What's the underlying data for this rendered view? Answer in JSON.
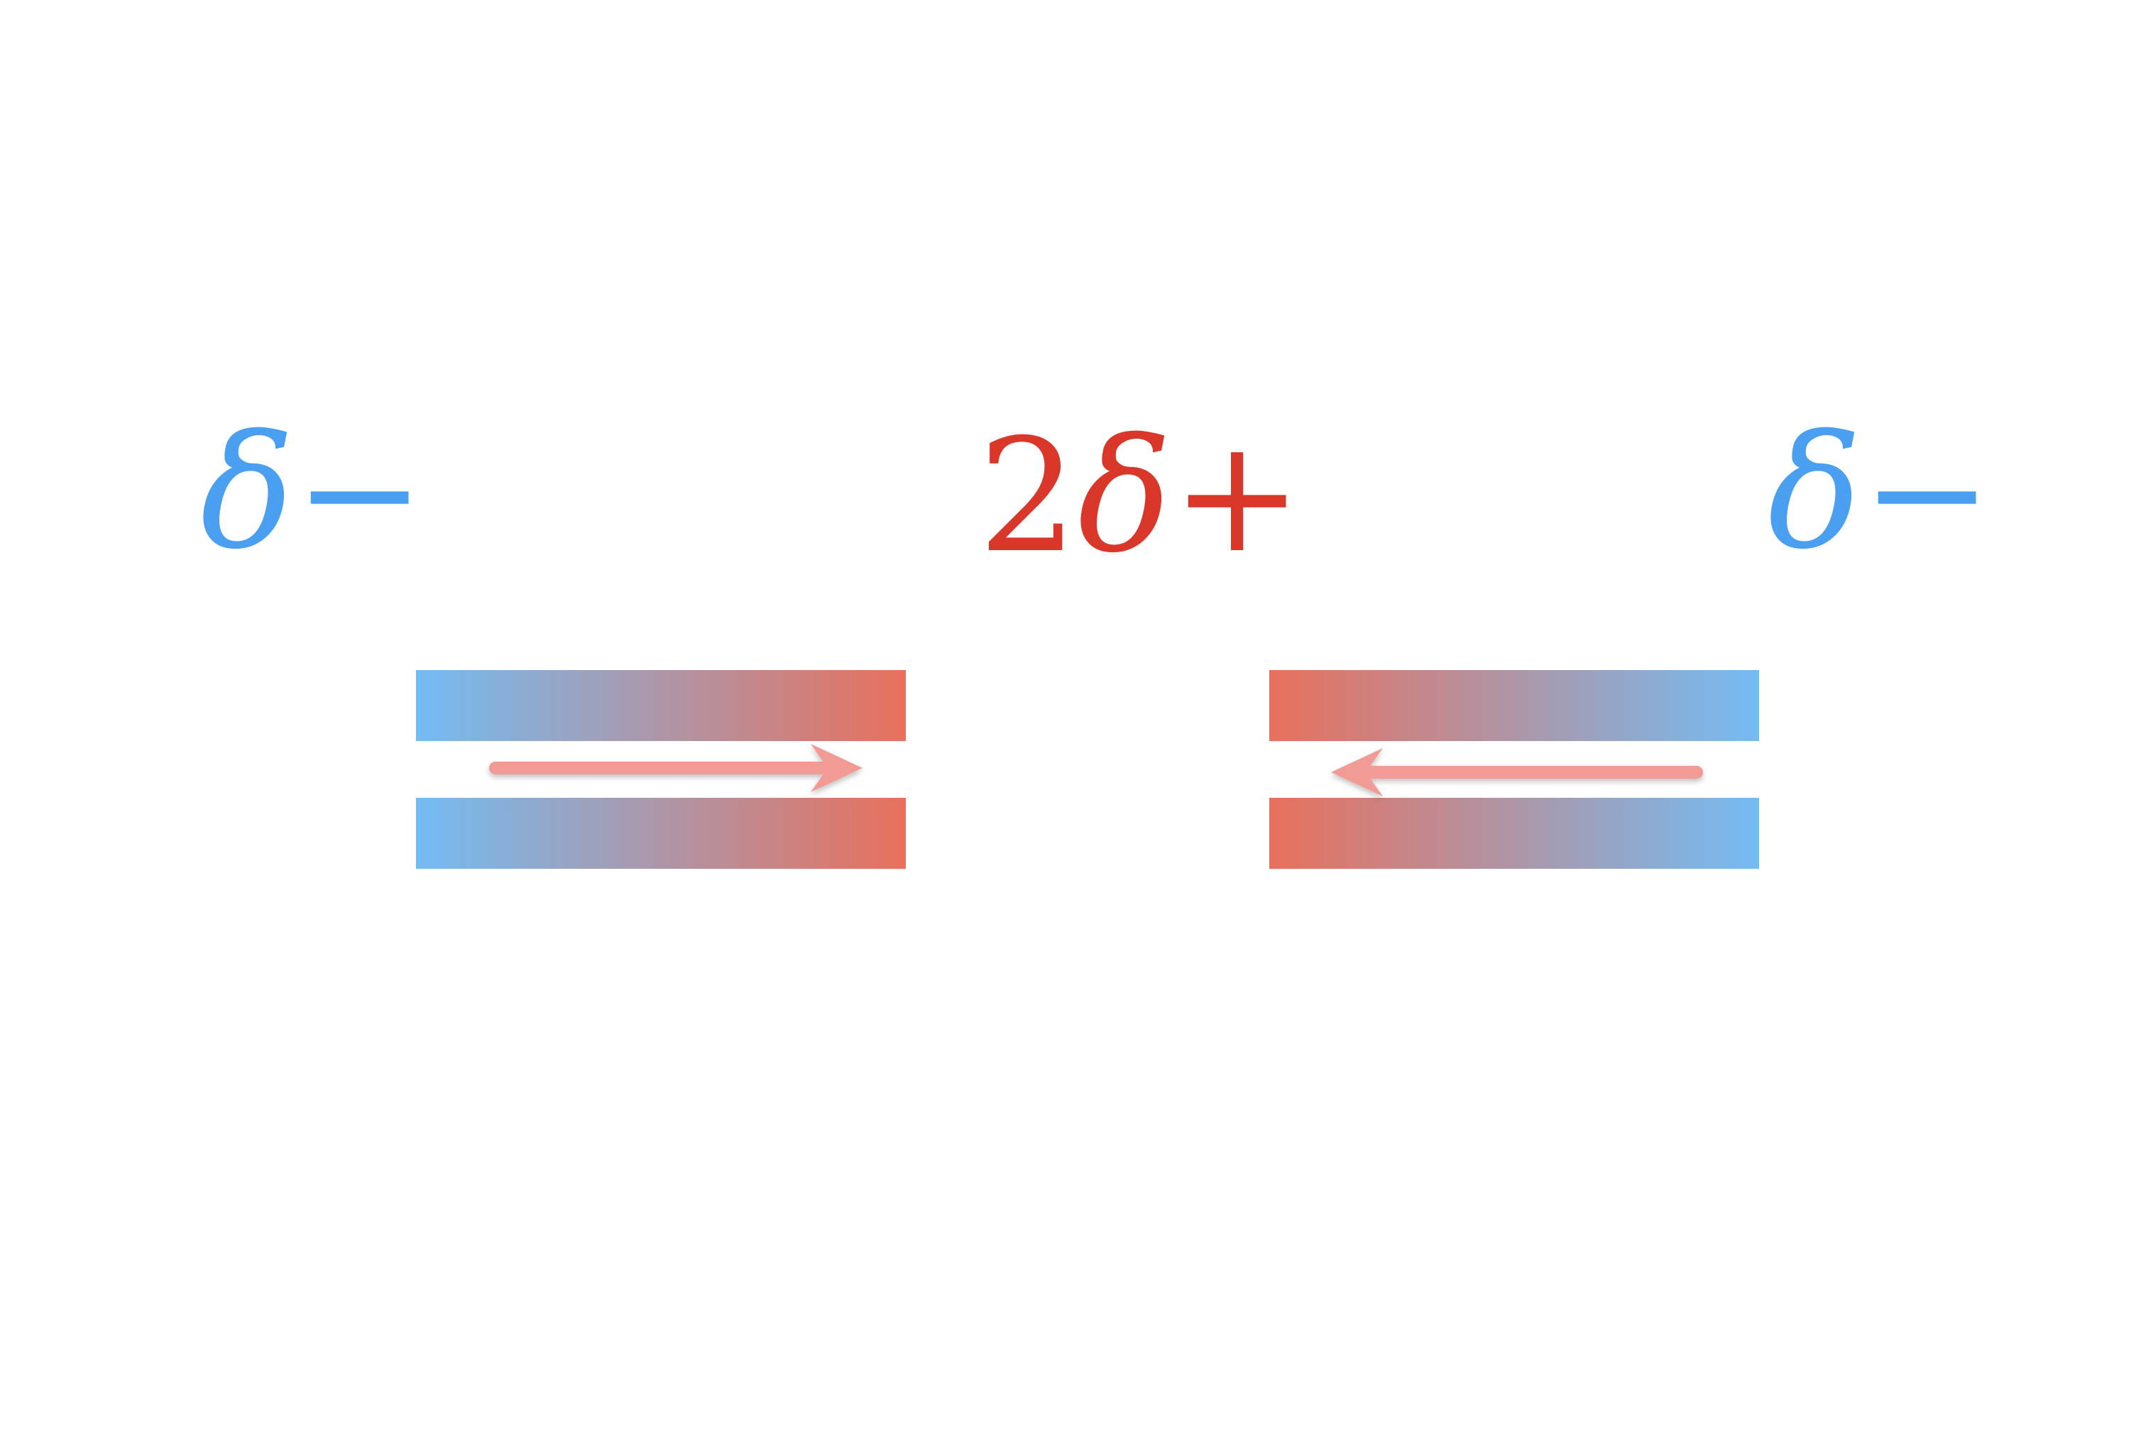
{
  "labels": {
    "left": {
      "symbol": "δ",
      "sign": "−",
      "coefficient": ""
    },
    "center": {
      "symbol": "δ",
      "sign": "+",
      "coefficient": "2"
    },
    "right": {
      "symbol": "δ",
      "sign": "−",
      "coefficient": ""
    }
  },
  "colors": {
    "negative": "#4a9ff0",
    "positive": "#d9372a",
    "bar_blue": "#73bcf3",
    "bar_red": "#e8705c",
    "arrow": "#f29b95"
  },
  "dipoles": [
    {
      "id": "left",
      "arrow_direction": "right",
      "gradient": "blue-to-red"
    },
    {
      "id": "right",
      "arrow_direction": "left",
      "gradient": "red-to-blue"
    }
  ]
}
